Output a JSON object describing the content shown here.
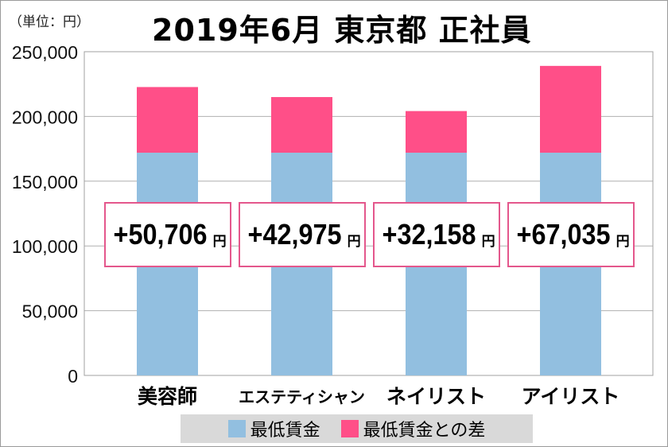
{
  "chart_data": {
    "type": "bar",
    "stacked": true,
    "title": "2019年6月 東京都 正社員",
    "unit_label": "（単位：円）",
    "categories": [
      "美容師",
      "エステティシャン",
      "ネイリスト",
      "アイリスト"
    ],
    "series": [
      {
        "name": "最低賃金",
        "values": [
          172000,
          172000,
          172000,
          172000
        ],
        "color": "#92bfe0"
      },
      {
        "name": "最低賃金との差",
        "values": [
          50706,
          42975,
          32158,
          67035
        ],
        "color": "#ff4f88"
      }
    ],
    "data_labels": [
      "+50,706",
      "+42,975",
      "+32,158",
      "+67,035"
    ],
    "data_label_unit": "円",
    "ylim": [
      0,
      250000
    ],
    "yticks": [
      "0",
      "50,000",
      "100,000",
      "150,000",
      "200,000",
      "250,000"
    ],
    "grid": true,
    "legend": "bottom"
  }
}
